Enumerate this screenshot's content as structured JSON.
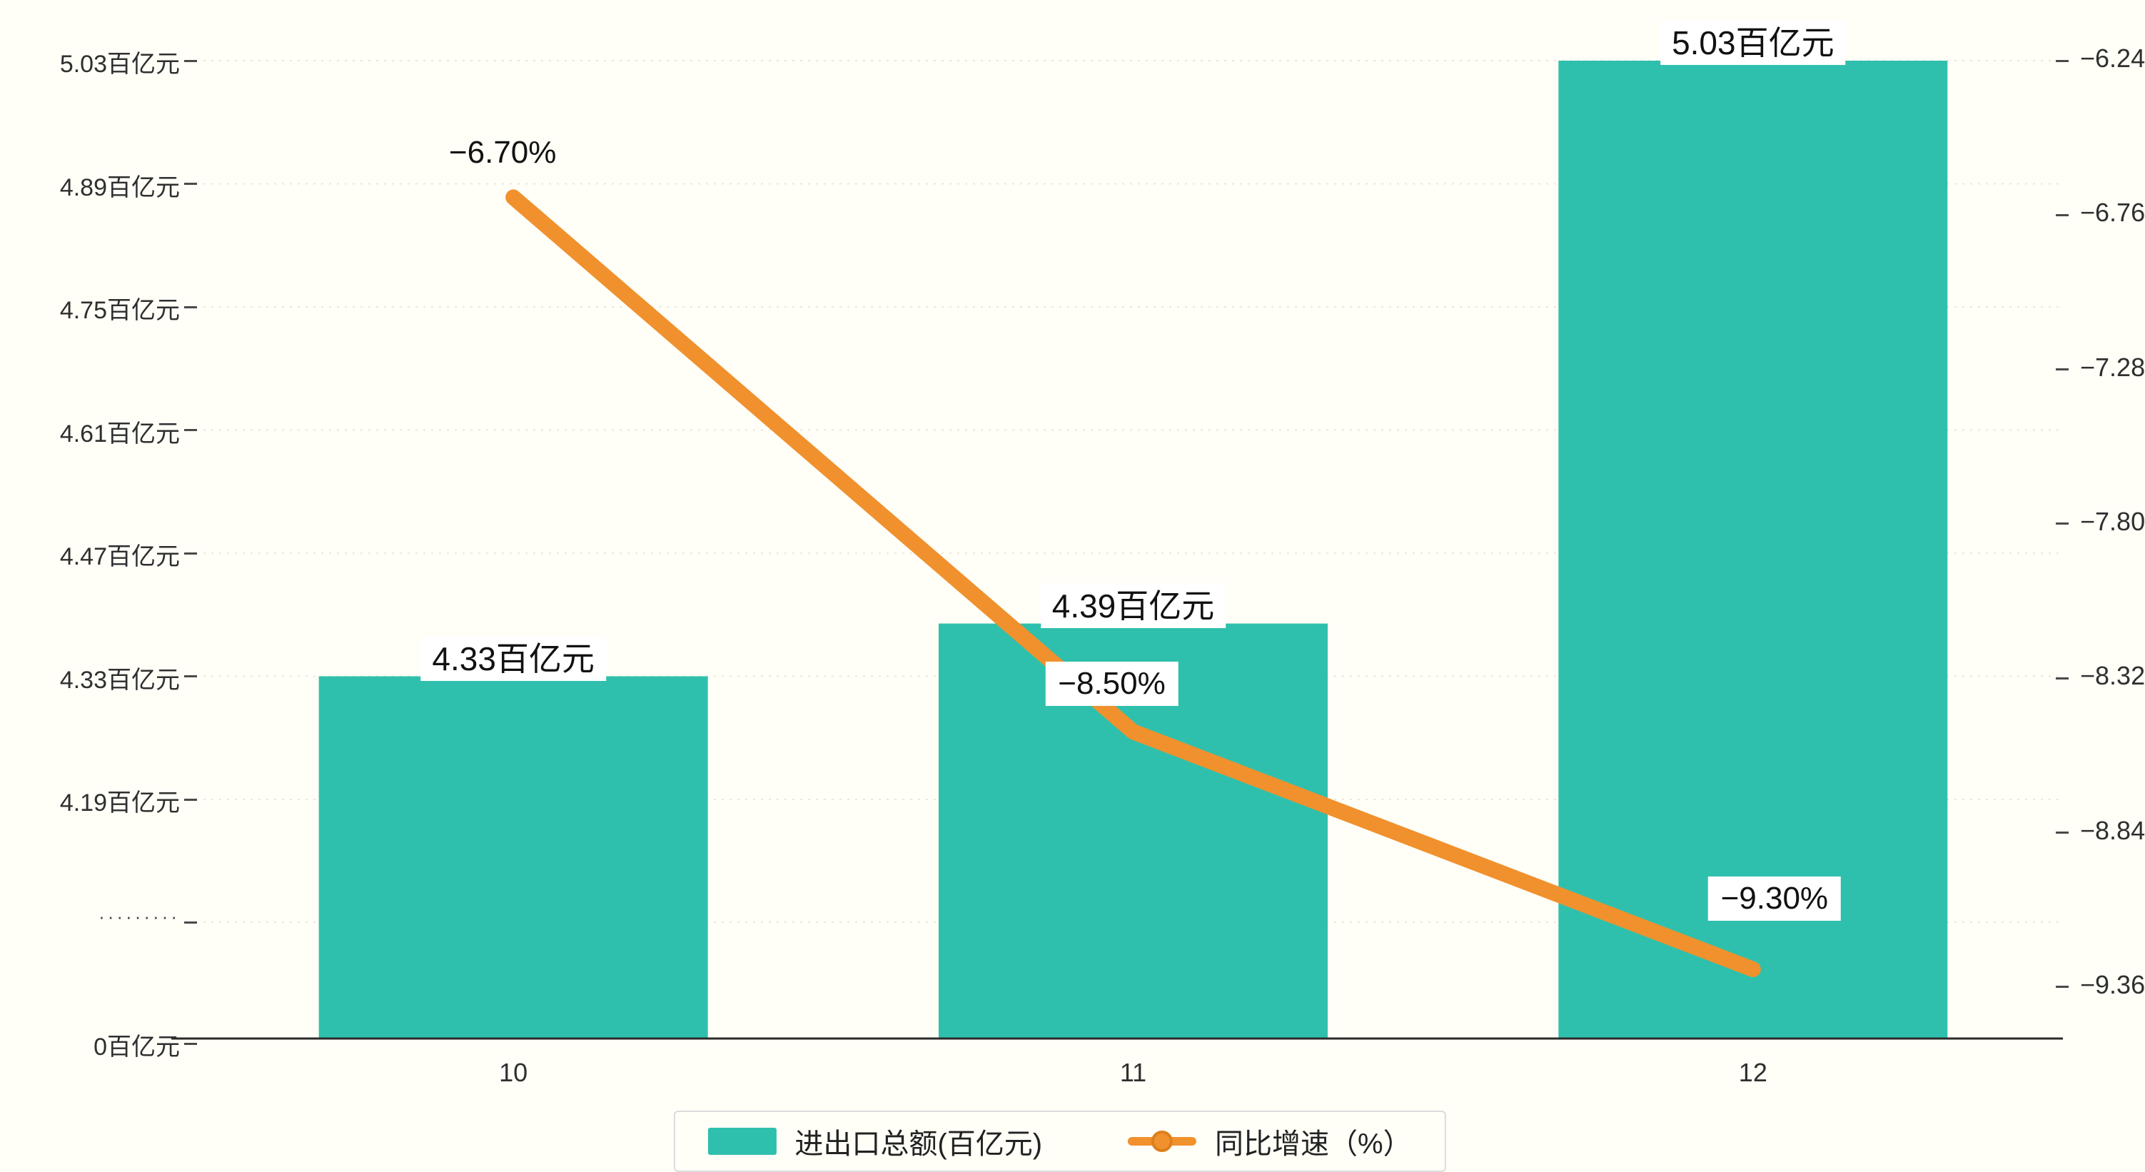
{
  "page": {
    "background": "#fffef7",
    "label_box_background": "#ffffff",
    "axis_color": "#4a4a4a",
    "grid_color": "#e9e7de"
  },
  "chart_data": {
    "type": "bar",
    "title": "",
    "categories": [
      "10",
      "11",
      "12"
    ],
    "series": [
      {
        "name": "进出口总额(百亿元)",
        "type": "bar",
        "axis": "left",
        "color": "#2fc0ad",
        "values": [
          4.33,
          4.39,
          5.03
        ],
        "value_labels": [
          "4.33百亿元",
          "4.39百亿元",
          "5.03百亿元"
        ]
      },
      {
        "name": "同比增速（%）",
        "type": "line",
        "axis": "right",
        "color": "#f0912d",
        "values": [
          -6.7,
          -8.5,
          -9.3
        ],
        "value_labels": [
          "−6.70%",
          "−8.50%",
          "−9.30%"
        ]
      }
    ],
    "left_axis": {
      "tick_labels": [
        "5.03百亿元",
        "4.89百亿元",
        "4.75百亿元",
        "4.61百亿元",
        "4.47百亿元",
        "4.33百亿元",
        "4.19百亿元",
        "·········",
        "0百亿元"
      ],
      "tick_values": [
        5.03,
        4.89,
        4.75,
        4.61,
        4.47,
        4.33,
        4.19
      ],
      "axis_break": true,
      "zero_label": "0百亿元"
    },
    "right_axis": {
      "tick_labels": [
        "−6.24",
        "−6.76",
        "−7.28",
        "−7.80",
        "−8.32",
        "−8.84",
        "−9.36"
      ],
      "tick_values": [
        -6.24,
        -6.76,
        -7.28,
        -7.8,
        -8.32,
        -8.84,
        -9.36
      ]
    },
    "grid": true,
    "legend_position": "bottom"
  },
  "legend": {
    "items": [
      {
        "label": "进出口总额(百亿元)",
        "series": "bar"
      },
      {
        "label": "同比增速（%）",
        "series": "line"
      }
    ]
  }
}
